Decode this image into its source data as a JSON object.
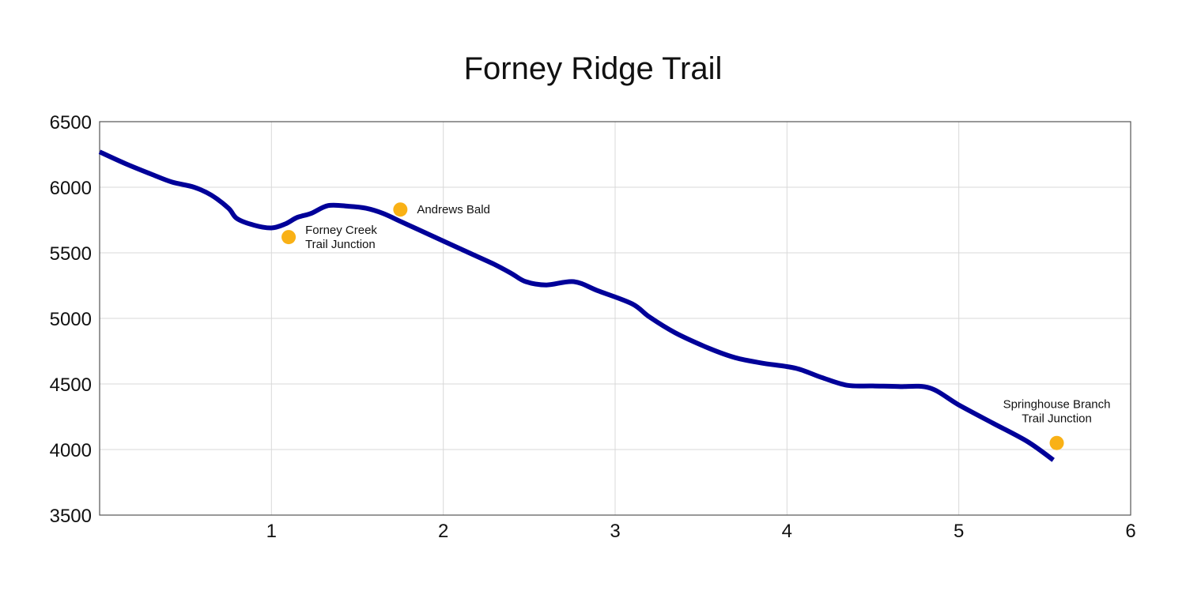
{
  "chart_data": {
    "type": "line",
    "title": "Forney Ridge Trail",
    "xlabel": "",
    "ylabel": "",
    "xlim": [
      0,
      6
    ],
    "ylim": [
      3500,
      6500
    ],
    "x_ticks": [
      1,
      2,
      3,
      4,
      5,
      6
    ],
    "y_ticks": [
      3500,
      4000,
      4500,
      5000,
      5500,
      6000,
      6500
    ],
    "grid": true,
    "line_color": "#000099",
    "marker_color": "#F9B116",
    "series": [
      {
        "points": [
          [
            0.0,
            6270
          ],
          [
            0.15,
            6180
          ],
          [
            0.3,
            6100
          ],
          [
            0.42,
            6040
          ],
          [
            0.55,
            6000
          ],
          [
            0.65,
            5940
          ],
          [
            0.75,
            5840
          ],
          [
            0.8,
            5760
          ],
          [
            0.9,
            5710
          ],
          [
            1.0,
            5690
          ],
          [
            1.08,
            5720
          ],
          [
            1.15,
            5770
          ],
          [
            1.23,
            5800
          ],
          [
            1.33,
            5860
          ],
          [
            1.45,
            5855
          ],
          [
            1.55,
            5840
          ],
          [
            1.65,
            5800
          ],
          [
            1.75,
            5740
          ],
          [
            1.85,
            5680
          ],
          [
            2.0,
            5590
          ],
          [
            2.15,
            5500
          ],
          [
            2.3,
            5410
          ],
          [
            2.4,
            5340
          ],
          [
            2.48,
            5280
          ],
          [
            2.6,
            5255
          ],
          [
            2.76,
            5280
          ],
          [
            2.9,
            5210
          ],
          [
            3.1,
            5110
          ],
          [
            3.2,
            5010
          ],
          [
            3.35,
            4890
          ],
          [
            3.55,
            4770
          ],
          [
            3.7,
            4700
          ],
          [
            3.85,
            4660
          ],
          [
            4.05,
            4620
          ],
          [
            4.2,
            4550
          ],
          [
            4.35,
            4490
          ],
          [
            4.5,
            4485
          ],
          [
            4.65,
            4480
          ],
          [
            4.83,
            4470
          ],
          [
            5.0,
            4340
          ],
          [
            5.2,
            4200
          ],
          [
            5.4,
            4060
          ],
          [
            5.55,
            3920
          ]
        ]
      }
    ],
    "annotations": [
      {
        "x": 1.1,
        "y": 5620,
        "label_lines": [
          "Forney Creek",
          "Trail Junction"
        ],
        "label_position": "right"
      },
      {
        "x": 1.75,
        "y": 5830,
        "label_lines": [
          "Andrews Bald"
        ],
        "label_position": "right"
      },
      {
        "x": 5.57,
        "y": 4050,
        "label_lines": [
          "Springhouse Branch",
          "Trail Junction"
        ],
        "label_position": "above"
      }
    ]
  }
}
